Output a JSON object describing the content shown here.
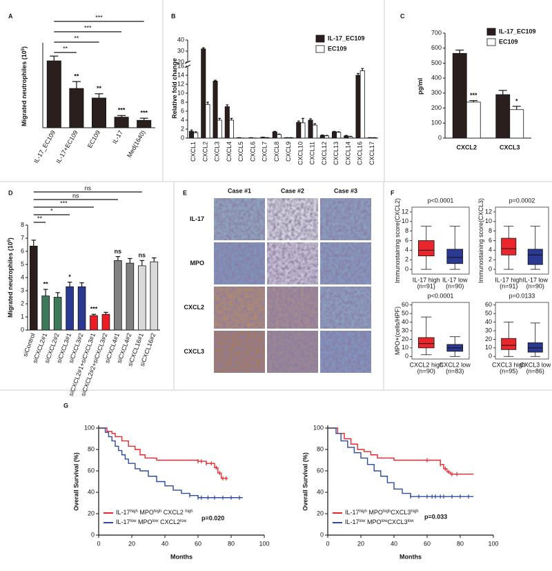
{
  "chart_data": [
    {
      "type": "bar",
      "panel": "A",
      "y_label": [
        "Migrated neutrophiles  (10",
        "5",
        ")"
      ],
      "categories": [
        "IL-17_EC109",
        "IL-17+EC109",
        "EC109",
        "IL-17",
        "Med(1640)"
      ],
      "values": [
        6.3,
        3.7,
        2.8,
        1.0,
        0.7
      ],
      "errors": [
        0.45,
        0.65,
        0.4,
        0.15,
        0.2
      ],
      "color": "#2a1f1c",
      "ylim": [
        0,
        8
      ],
      "significance": [
        null,
        "**",
        "**",
        "***",
        "***"
      ]
    },
    {
      "type": "bar",
      "panel": "B",
      "y_label": [
        "Relative fold change"
      ],
      "categories": [
        "CXCL1",
        "CXCL2",
        "CXCL3",
        "CXCL4",
        "CXCL5",
        "CXCL6",
        "CXCL7",
        "CXCL8",
        "CXCL9",
        "CXCL10",
        "CXCL11",
        "CXCL12",
        "CXCL13",
        "CXCL14",
        "CXCL16",
        "CXCL17"
      ],
      "series": [
        {
          "name": "IL-17_EC109",
          "color": "#2a1f1c",
          "values": [
            1.5,
            32,
            12.7,
            7,
            0.1,
            0.1,
            0.2,
            1.4,
            0.1,
            3.5,
            4,
            0.6,
            1.4,
            0.5,
            14,
            0.1
          ],
          "errors": [
            0.3,
            1.0,
            0.2,
            0.4,
            0,
            0,
            0,
            0.1,
            0,
            0.3,
            0.3,
            0.1,
            0.1,
            0.1,
            0.4,
            0
          ]
        },
        {
          "name": "EC109",
          "color": "#ffffff",
          "values": [
            1.2,
            7.5,
            4,
            4,
            0,
            0,
            0.1,
            0.8,
            0.1,
            3.4,
            2.9,
            0.5,
            1.3,
            0.3,
            15,
            0.1
          ],
          "errors": [
            0.2,
            0.5,
            0.4,
            0.4,
            0,
            0,
            0,
            0.1,
            0,
            1.0,
            0.3,
            0.1,
            0.1,
            0.1,
            0.5,
            0
          ]
        }
      ],
      "ylim": [
        0,
        40
      ],
      "ybreak": [
        16,
        20
      ],
      "yticks": [
        0,
        2,
        4,
        6,
        8,
        10,
        12,
        14,
        16,
        20,
        30,
        40
      ]
    },
    {
      "type": "bar",
      "panel": "C",
      "y_label": [
        "pg/ml"
      ],
      "categories": [
        "CXCL2",
        "CXCL3"
      ],
      "series": [
        {
          "name": "IL-17_EC109",
          "color": "#2a1f1c",
          "values": [
            565,
            290
          ],
          "errors": [
            22,
            28
          ]
        },
        {
          "name": "EC109",
          "color": "#ffffff",
          "values": [
            240,
            190
          ],
          "errors": [
            10,
            22
          ],
          "significance": [
            "***",
            "*"
          ]
        }
      ],
      "ylim": [
        0,
        700
      ],
      "yticks": [
        0,
        100,
        200,
        300,
        400,
        500,
        600,
        700
      ]
    },
    {
      "type": "bar",
      "panel": "D",
      "y_label": [
        "Migrated neutrophiles  (10",
        "5",
        ")"
      ],
      "categories": [
        "siControl",
        "siCXCL2#1",
        "siCXCL2#2",
        "siCXCL3#1",
        "siCXCL3#2",
        "siCXCL2#1+siCXCL3#1",
        "siCXCL2#2+siCXCL3#2",
        "siCXCL4#1",
        "siCXCL4#2",
        "siCXCL16#1",
        "siCXCL16#2"
      ],
      "values": [
        6.4,
        2.6,
        2.5,
        3.3,
        3.3,
        1.1,
        1.2,
        5.3,
        5.1,
        4.9,
        5.2
      ],
      "errors": [
        0.45,
        0.5,
        0.35,
        0.35,
        0.3,
        0.1,
        0.15,
        0.3,
        0.35,
        0.4,
        0.3
      ],
      "colors": [
        "#2a1f1c",
        "#3d7a5a",
        "#3d7a5a",
        "#2b3990",
        "#2b3990",
        "#ed1c24",
        "#ed1c24",
        "#808080",
        "#808080",
        "#d9d9d9",
        "#d9d9d9"
      ],
      "ylim": [
        0,
        8
      ],
      "yticks": [
        0,
        1,
        2,
        3,
        4,
        5,
        6,
        7,
        8
      ],
      "significance": [
        null,
        "**",
        null,
        "*",
        null,
        "***",
        null,
        "ns",
        null,
        "ns",
        null
      ]
    },
    {
      "type": "image_grid",
      "panel": "E",
      "columns": [
        "Case #1",
        "Case #2",
        "Case #3"
      ],
      "rows": [
        "IL-17",
        "MPO",
        "CXCL2",
        "CXCL3"
      ]
    },
    {
      "type": "box",
      "panel": "F",
      "title": "p<0.0001",
      "y_label": [
        "Immunostaining score(CXCL2)"
      ],
      "ylim": [
        -1,
        13
      ],
      "yticks": [
        0,
        2,
        4,
        6,
        8,
        10,
        12
      ],
      "boxes": [
        {
          "label": "IL-17 high",
          "n": "(n=91)",
          "color": "#e8262b",
          "min": 0,
          "q1": 2.8,
          "median": 4,
          "q3": 6,
          "max": 9
        },
        {
          "label": "IL-17 low",
          "n": "(n=90)",
          "color": "#2b3990",
          "min": 0,
          "q1": 1.2,
          "median": 2.5,
          "q3": 4.2,
          "max": 9
        }
      ]
    },
    {
      "type": "box",
      "title": "p=0.0002",
      "y_label": [
        "Immunostaining score(CXCL3)"
      ],
      "ylim": [
        -1,
        13
      ],
      "yticks": [
        0,
        2,
        4,
        6,
        8,
        10,
        12
      ],
      "boxes": [
        {
          "label": "IL-17 high",
          "n": "(n=91)",
          "color": "#e8262b",
          "min": 0,
          "q1": 3,
          "median": 4.3,
          "q3": 6.5,
          "max": 9
        },
        {
          "label": "IL-17 low",
          "n": "(n=90)",
          "color": "#2b3990",
          "min": 0,
          "q1": 1,
          "median": 3,
          "q3": 4.2,
          "max": 9
        }
      ]
    },
    {
      "type": "box",
      "title": "p<0.0001",
      "y_label": [
        "MPO+(cells/HPF)"
      ],
      "ylim": [
        -3,
        63
      ],
      "yticks": [
        0,
        10,
        20,
        30,
        40,
        50,
        60
      ],
      "boxes": [
        {
          "label": "CXCL2 high",
          "n": "(n=90)",
          "color": "#e8262b",
          "min": 2,
          "q1": 10,
          "median": 15,
          "q3": 22,
          "max": 46
        },
        {
          "label": "CXCL2 low",
          "n": "(n=83)",
          "color": "#2b3990",
          "min": 0,
          "q1": 6,
          "median": 10,
          "q3": 14,
          "max": 23
        }
      ]
    },
    {
      "type": "box",
      "title": "p=0.0133",
      "ylim": [
        -3,
        63
      ],
      "yticks": [
        0,
        10,
        20,
        30,
        40,
        50,
        60
      ],
      "boxes": [
        {
          "label": "CXCL3 high",
          "n": "(n=95)",
          "color": "#e8262b",
          "min": 0,
          "q1": 8,
          "median": 13,
          "q3": 21,
          "max": 40
        },
        {
          "label": "CXCL3 low",
          "n": "(n=86)",
          "color": "#2b3990",
          "min": 0,
          "q1": 5,
          "median": 10,
          "q3": 16,
          "max": 39
        }
      ]
    },
    {
      "type": "survival",
      "panel": "G",
      "y_label": "Overall Survival (%)",
      "x_label": "Months",
      "annotation": "p=0.020",
      "xlim": [
        0,
        100
      ],
      "xticks": [
        0,
        20,
        40,
        60,
        80,
        100
      ],
      "ylim": [
        0,
        100
      ],
      "yticks": [
        0,
        20,
        40,
        60,
        80,
        100
      ],
      "series": [
        {
          "name": [
            "IL-17",
            "high",
            " MPO",
            "high",
            " CXCL2 ",
            "high"
          ],
          "color": "#e8262b",
          "x": [
            0,
            5,
            8,
            10,
            14,
            18,
            22,
            25,
            28,
            35,
            60,
            65,
            70,
            72,
            74,
            78
          ],
          "y": [
            100,
            97,
            95,
            92,
            88,
            83,
            80,
            75,
            72,
            70,
            69,
            67,
            63,
            58,
            53,
            53
          ],
          "censored": [
            60,
            62,
            65,
            68,
            71,
            73,
            75,
            77
          ]
        },
        {
          "name": [
            "IL-17",
            "low",
            " MPO",
            "low",
            " CXCL2",
            "low"
          ],
          "color": "#2b4aa0",
          "x": [
            0,
            4,
            6,
            8,
            10,
            12,
            14,
            16,
            18,
            22,
            25,
            30,
            35,
            40,
            45,
            50,
            55,
            60,
            87
          ],
          "y": [
            100,
            96,
            92,
            88,
            83,
            79,
            75,
            71,
            67,
            62,
            60,
            55,
            50,
            46,
            42,
            39,
            37,
            35,
            35
          ],
          "censored": [
            55,
            60,
            62,
            66,
            70,
            75,
            80,
            85
          ]
        }
      ]
    },
    {
      "type": "survival",
      "y_label": "Overall Survival (%)",
      "x_label": "Months",
      "annotation": "p=0.033",
      "xlim": [
        0,
        100
      ],
      "xticks": [
        0,
        20,
        40,
        60,
        80,
        100
      ],
      "ylim": [
        0,
        100
      ],
      "yticks": [
        0,
        20,
        40,
        60,
        80,
        100
      ],
      "series": [
        {
          "name": [
            "IL-17",
            "high",
            " MPO",
            "high",
            "CXCL3",
            "high"
          ],
          "color": "#e8262b",
          "x": [
            0,
            6,
            10,
            14,
            18,
            22,
            26,
            30,
            40,
            60,
            68,
            70,
            72,
            74,
            88
          ],
          "y": [
            100,
            95,
            90,
            85,
            80,
            78,
            75,
            72,
            70,
            70,
            66,
            62,
            59,
            57,
            57
          ],
          "censored": [
            60,
            68,
            71,
            73,
            75,
            78
          ]
        },
        {
          "name": [
            "IL-17",
            "low",
            " MPO",
            "low",
            "CXCL3",
            "low"
          ],
          "color": "#2b4aa0",
          "x": [
            0,
            5,
            8,
            12,
            16,
            20,
            24,
            28,
            32,
            36,
            40,
            45,
            50,
            88
          ],
          "y": [
            100,
            95,
            88,
            82,
            77,
            72,
            66,
            60,
            55,
            49,
            43,
            39,
            36,
            36
          ],
          "censored": [
            50,
            55,
            60,
            63,
            65,
            68,
            70,
            75,
            80,
            85
          ]
        }
      ]
    }
  ]
}
